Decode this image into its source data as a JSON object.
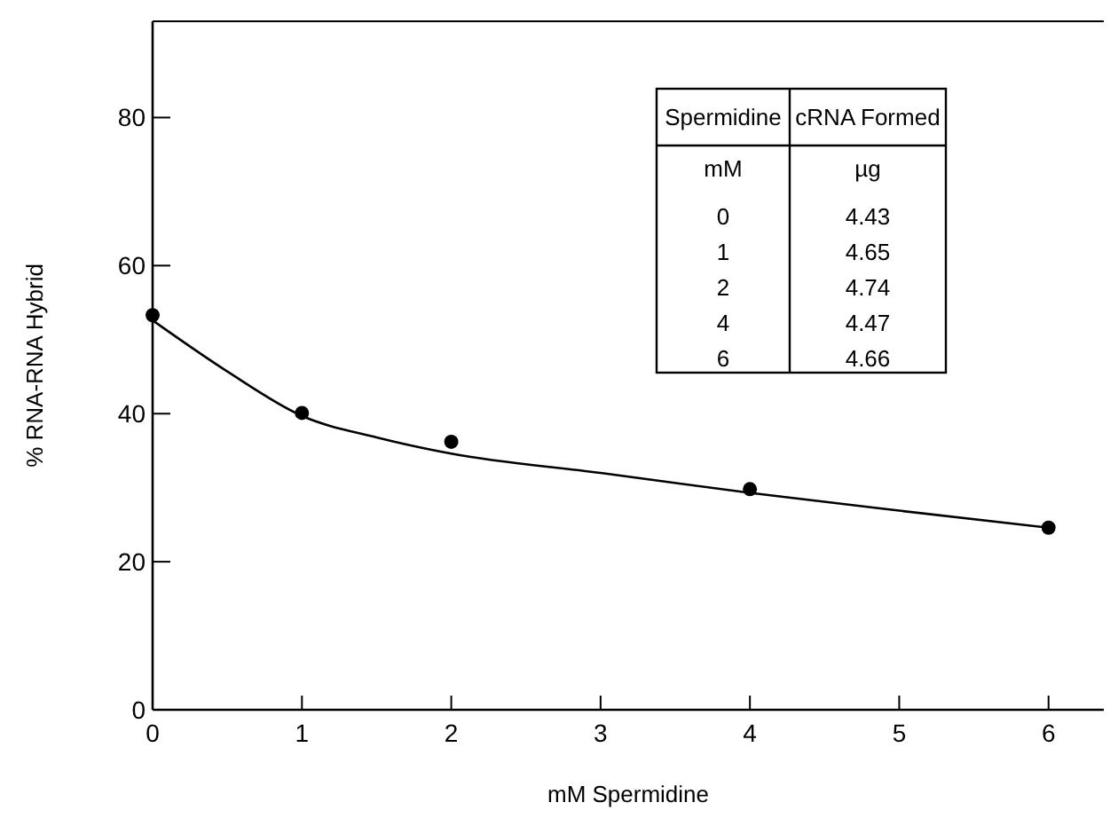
{
  "chart_data": {
    "type": "scatter",
    "xlabel": "mM Spermidine",
    "ylabel": "% RNA-RNA Hybrid",
    "x": [
      0,
      1,
      2,
      4,
      6
    ],
    "series": [
      {
        "color": "#000000",
        "marker": "circle",
        "values": [
          53.3,
          40.1,
          36.2,
          29.8,
          24.6
        ]
      },
      {
        "type": "line",
        "color": "#000000",
        "x": [
          0,
          0.5,
          1,
          1.5,
          2,
          3,
          4,
          5,
          6
        ],
        "values": [
          52.6,
          45.7,
          39.7,
          36.8,
          34.6,
          32,
          29.3,
          26.9,
          24.6
        ]
      }
    ],
    "xlim": [
      0,
      6.37
    ],
    "xticks": [
      0,
      1,
      2,
      3,
      4,
      5,
      6
    ],
    "ylim": [
      0,
      93
    ],
    "yticks": [
      0,
      20,
      40,
      60,
      80
    ],
    "grid": false,
    "annotations": [
      "Spermidine",
      "cRNA Formed",
      "mM",
      "µg",
      "0",
      "4.43",
      "1",
      "4.65",
      "2",
      "4.74",
      "4",
      "4.47",
      "6",
      "4.66"
    ]
  }
}
